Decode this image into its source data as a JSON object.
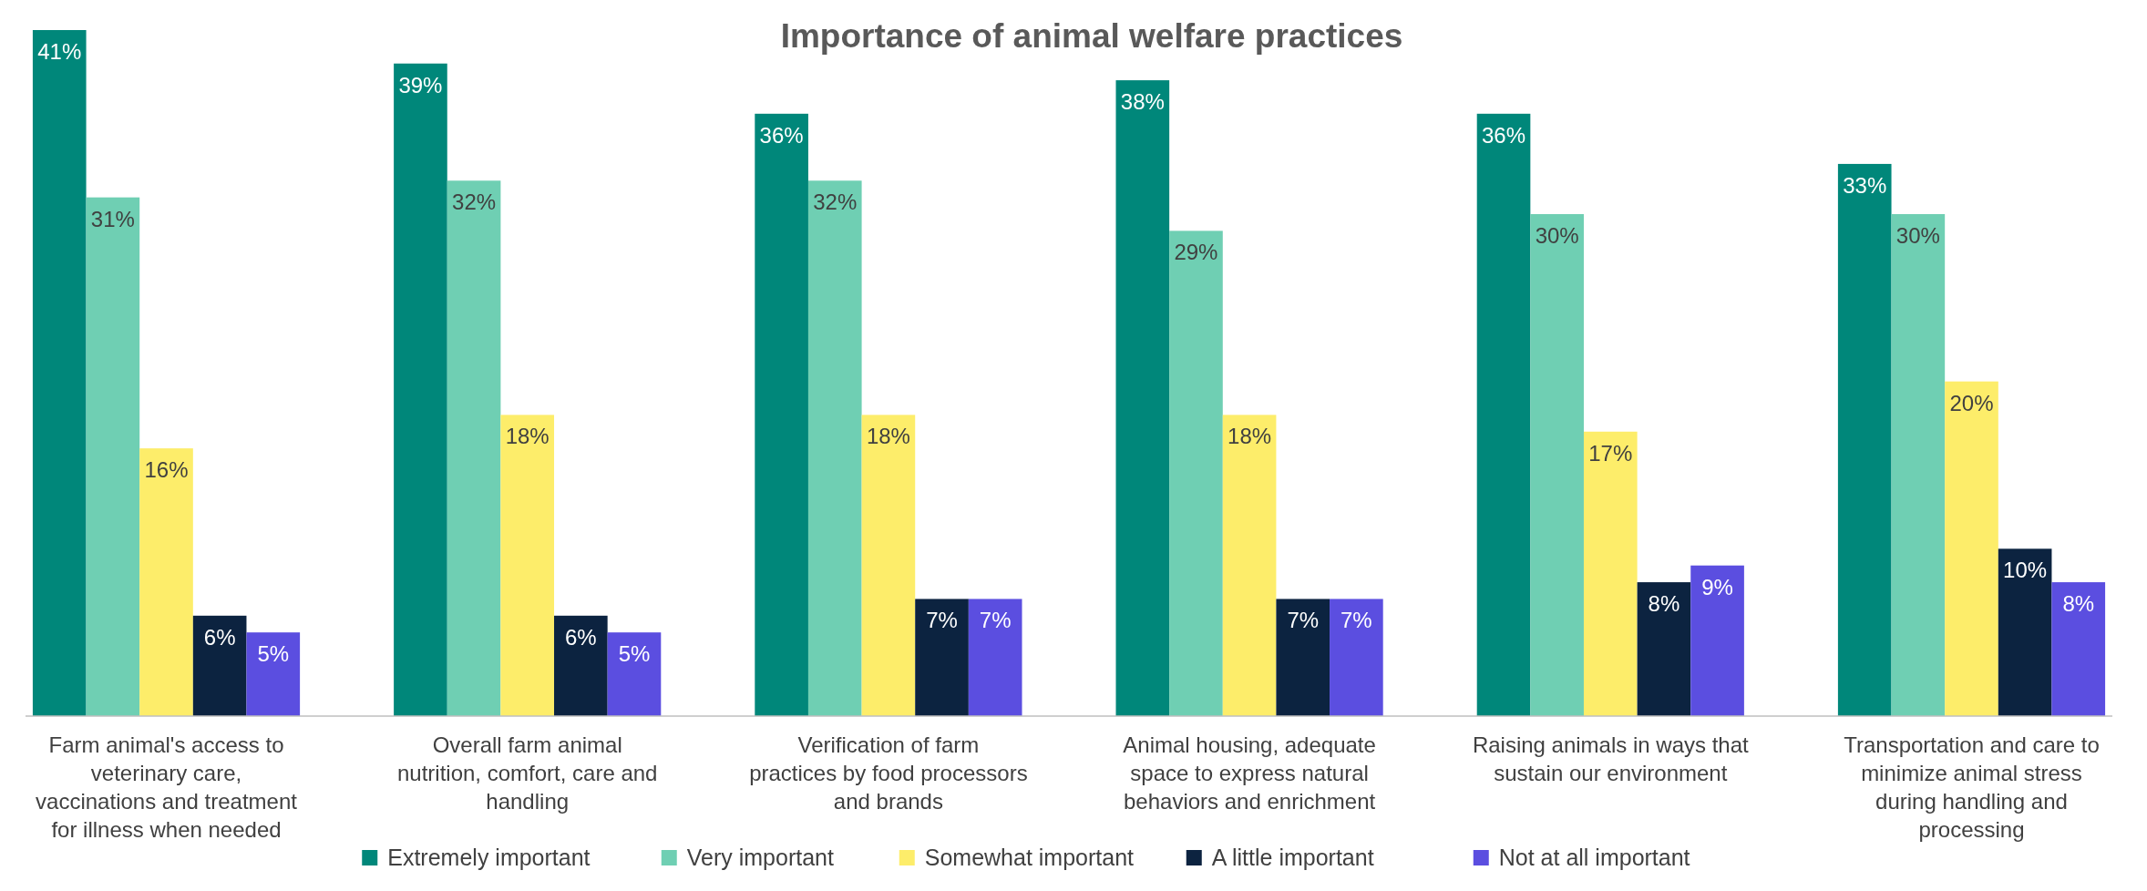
{
  "chart_data": {
    "type": "bar",
    "title": "Importance of animal welfare practices",
    "categories": [
      "Farm animal's access to veterinary care, vaccinations and treatment for illness when needed",
      "Overall farm animal nutrition, comfort, care and handling",
      "Verification of farm practices by food processors and brands",
      "Animal housing, adequate space to express natural behaviors and enrichment",
      "Raising animals in ways that sustain our environment",
      "Transportation and care to minimize animal stress during handling and processing"
    ],
    "series": [
      {
        "name": "Extremely important",
        "color": "#00877a",
        "values": [
          41,
          39,
          36,
          38,
          36,
          33
        ],
        "value_labels": [
          "41%",
          "39%",
          "36%",
          "38%",
          "36%",
          "33%"
        ]
      },
      {
        "name": "Very important",
        "color": "#6fcfb3",
        "values": [
          31,
          32,
          32,
          29,
          30,
          30
        ],
        "value_labels": [
          "31%",
          "32%",
          "32%",
          "29%",
          "30%",
          "30%"
        ]
      },
      {
        "name": "Somewhat important",
        "color": "#fded6a",
        "values": [
          16,
          18,
          18,
          18,
          17,
          20
        ],
        "value_labels": [
          "16%",
          "18%",
          "18%",
          "18%",
          "17%",
          "20%"
        ]
      },
      {
        "name": "A little important",
        "color": "#0c2340",
        "values": [
          6,
          6,
          7,
          7,
          8,
          10
        ],
        "value_labels": [
          "6%",
          "6%",
          "7%",
          "7%",
          "8%",
          "10%"
        ]
      },
      {
        "name": "Not at all important",
        "color": "#5b4ee0",
        "values": [
          5,
          5,
          7,
          7,
          9,
          8
        ],
        "value_labels": [
          "5%",
          "5%",
          "7%",
          "7%",
          "9%",
          "8%"
        ]
      }
    ],
    "legend": "bottom"
  }
}
